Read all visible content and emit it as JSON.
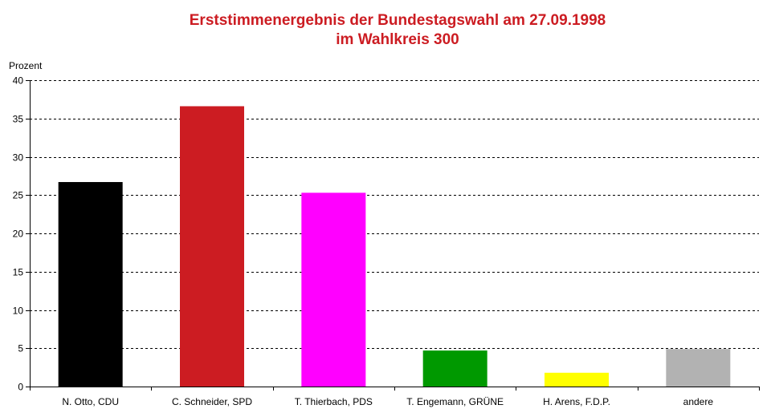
{
  "chart_data": {
    "type": "bar",
    "title": "Erststimmenergebnis der Bundestagswahl am 27.09.1998",
    "subtitle": "im Wahlkreis 300",
    "ylabel": "Prozent",
    "xlabel": "",
    "ylim": [
      0,
      40
    ],
    "yticks": [
      0,
      5,
      10,
      15,
      20,
      25,
      30,
      35,
      40
    ],
    "grid": true,
    "categories": [
      "N. Otto, CDU",
      "C. Schneider, SPD",
      "T. Thierbach, PDS",
      "T. Engemann, GRÜNE",
      "H. Arens, F.D.P.",
      "andere"
    ],
    "values": [
      26.7,
      36.6,
      25.3,
      4.7,
      1.8,
      4.9
    ],
    "colors": [
      "#000000",
      "#cc1c22",
      "#ff00ff",
      "#009900",
      "#ffff00",
      "#b2b2b2"
    ]
  }
}
